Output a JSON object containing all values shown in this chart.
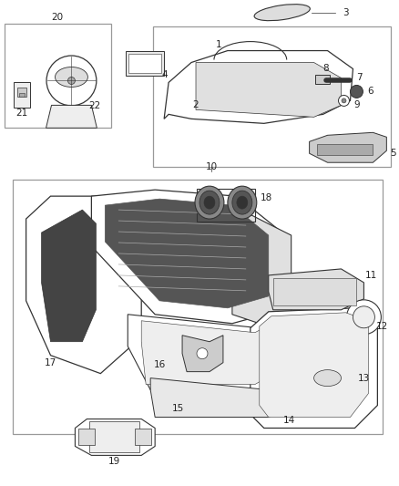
{
  "bg_color": "#ffffff",
  "line_color": "#333333",
  "gray_color": "#888888",
  "dark_color": "#444444",
  "fig_width": 4.38,
  "fig_height": 5.33,
  "dpi": 100
}
